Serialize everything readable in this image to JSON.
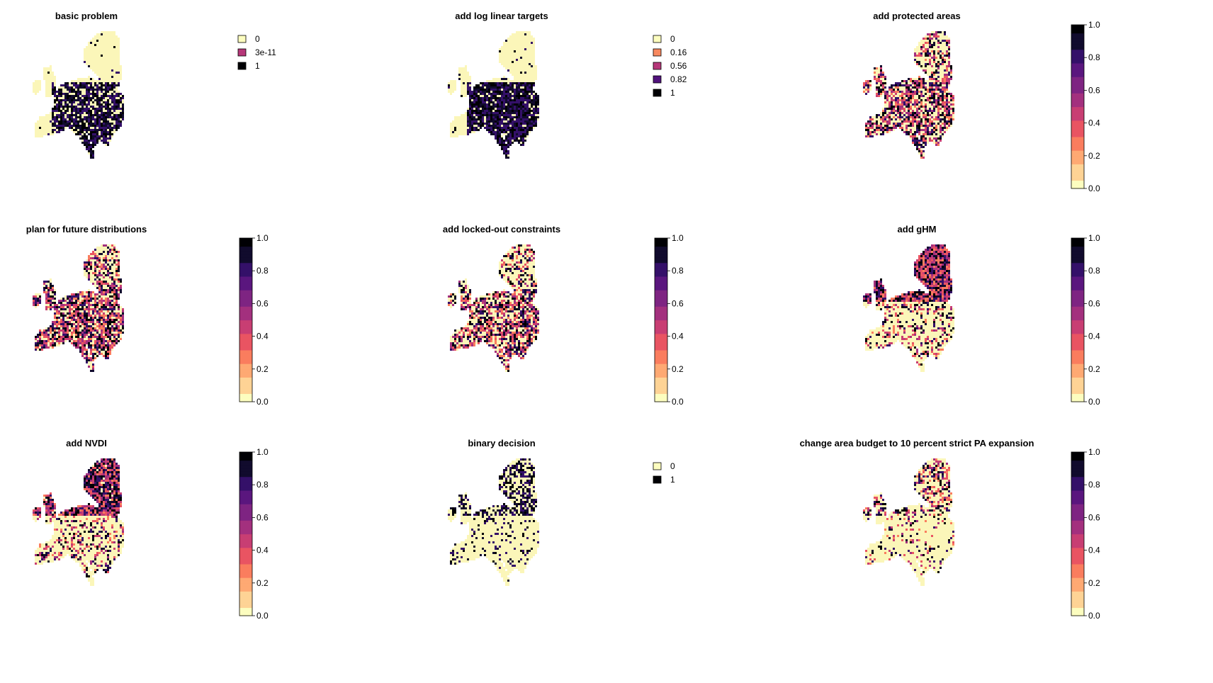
{
  "palette": {
    "magma": [
      "#fcfdbf",
      "#fed395",
      "#fea973",
      "#fa7d5e",
      "#e95462",
      "#c83e73",
      "#a3307e",
      "#7e2482",
      "#5a167e",
      "#341069",
      "#110b2d",
      "#000004"
    ],
    "land_low": "#fbf6b9"
  },
  "chart_data": [
    {
      "type": "heatmap",
      "title": "basic problem",
      "legend_kind": "categorical",
      "legend": [
        {
          "label": "0",
          "color": "#fcfdbf"
        },
        {
          "label": "3e-11",
          "color": "#b63779"
        },
        {
          "label": "1",
          "color": "#000004"
        }
      ],
      "selected_fraction": 0.35,
      "selection_region": "central-south"
    },
    {
      "type": "heatmap",
      "title": "add log linear targets",
      "legend_kind": "categorical",
      "legend": [
        {
          "label": "0",
          "color": "#fcfdbf"
        },
        {
          "label": "0.16",
          "color": "#f8895f"
        },
        {
          "label": "0.56",
          "color": "#b63779"
        },
        {
          "label": "0.82",
          "color": "#51127c"
        },
        {
          "label": "1",
          "color": "#000004"
        }
      ],
      "selected_fraction": 0.4,
      "selection_region": "central-south"
    },
    {
      "type": "heatmap",
      "title": "add protected areas",
      "legend_kind": "continuous",
      "ticks": [
        "0.0",
        "0.2",
        "0.4",
        "0.6",
        "0.8",
        "1.0"
      ],
      "range": [
        0,
        1
      ],
      "selected_fraction": 0.22,
      "selection_region": "mixed"
    },
    {
      "type": "heatmap",
      "title": "plan for future distributions",
      "legend_kind": "continuous",
      "ticks": [
        "0.0",
        "0.2",
        "0.4",
        "0.6",
        "0.8",
        "1.0"
      ],
      "range": [
        0,
        1
      ],
      "selected_fraction": 0.25,
      "selection_region": "mixed"
    },
    {
      "type": "heatmap",
      "title": "add locked-out constraints",
      "legend_kind": "continuous",
      "ticks": [
        "0.0",
        "0.2",
        "0.4",
        "0.6",
        "0.8",
        "1.0"
      ],
      "range": [
        0,
        1
      ],
      "selected_fraction": 0.2,
      "selection_region": "mixed"
    },
    {
      "type": "heatmap",
      "title": "add gHM",
      "legend_kind": "continuous",
      "ticks": [
        "0.0",
        "0.2",
        "0.4",
        "0.6",
        "0.8",
        "1.0"
      ],
      "range": [
        0,
        1
      ],
      "selected_fraction": 0.22,
      "selection_region": "north"
    },
    {
      "type": "heatmap",
      "title": "add NVDI",
      "legend_kind": "continuous",
      "ticks": [
        "0.0",
        "0.2",
        "0.4",
        "0.6",
        "0.8",
        "1.0"
      ],
      "range": [
        0,
        1
      ],
      "selected_fraction": 0.2,
      "selection_region": "north"
    },
    {
      "type": "heatmap",
      "title": "binary decision",
      "legend_kind": "categorical",
      "legend": [
        {
          "label": "0",
          "color": "#fcfdbf"
        },
        {
          "label": "1",
          "color": "#000004"
        }
      ],
      "selected_fraction": 0.22,
      "selection_region": "north"
    },
    {
      "type": "heatmap",
      "title": "change area budget to 10 percent strict PA expansion",
      "legend_kind": "continuous",
      "ticks": [
        "0.0",
        "0.2",
        "0.4",
        "0.6",
        "0.8",
        "1.0"
      ],
      "range": [
        0,
        1
      ],
      "selected_fraction": 0.1,
      "selection_region": "north"
    }
  ]
}
